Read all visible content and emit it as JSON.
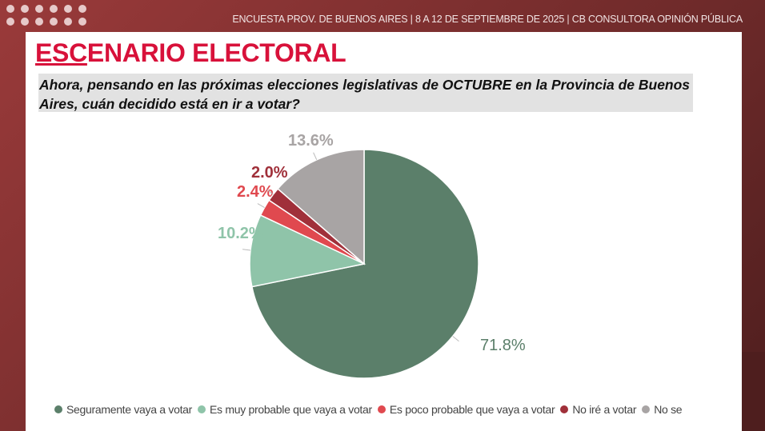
{
  "header": {
    "text": "ENCUESTA PROV. DE BUENOS AIRES | 8 A 12 DE SEPTIEMBRE DE 2025 | CB CONSULTORA OPINIÓN PÚBLICA"
  },
  "title": {
    "underlined": "ESC",
    "rest": "ENARIO ELECTORAL"
  },
  "question": "Ahora, pensando en las próximas elecciones legislativas de OCTUBRE en la Provincia de Buenos Aires, cuán decidido está en ir a votar?",
  "chart_data": {
    "type": "pie",
    "categories": [
      "Seguramente vaya a votar",
      "Es muy probable que vaya a votar",
      "Es poco probable que vaya a votar",
      "No iré a votar",
      "No se"
    ],
    "values": [
      71.8,
      10.2,
      2.4,
      2.0,
      13.6
    ],
    "labels": [
      "71.8%",
      "10.2%",
      "2.4%",
      "2.0%",
      "13.6%"
    ],
    "colors": [
      "#5b7f6a",
      "#8fc4a9",
      "#e0494f",
      "#a0303a",
      "#a8a4a4"
    ],
    "legend_position": "bottom",
    "start": "top, clockwise"
  }
}
